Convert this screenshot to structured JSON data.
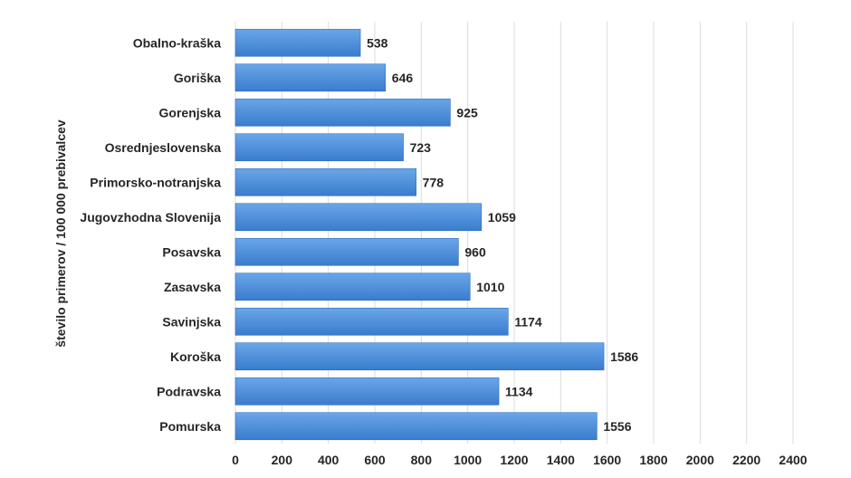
{
  "chart_data": {
    "type": "bar",
    "orientation": "horizontal",
    "title": "",
    "xlabel": "",
    "ylabel": "število primerov / 100 000 prebivalcev",
    "categories": [
      "Obalno-kraška",
      "Goriška",
      "Gorenjska",
      "Osrednjeslovenska",
      "Primorsko-notranjska",
      "Jugovzhodna Slovenija",
      "Posavska",
      "Zasavska",
      "Savinjska",
      "Koroška",
      "Podravska",
      "Pomurska"
    ],
    "values": [
      538,
      646,
      925,
      723,
      778,
      1059,
      960,
      1010,
      1174,
      1586,
      1134,
      1556
    ],
    "xlim": [
      0,
      2400
    ],
    "xticks": [
      0,
      200,
      400,
      600,
      800,
      1000,
      1200,
      1400,
      1600,
      1800,
      2000,
      2200,
      2400
    ],
    "grid": true,
    "legend": "none",
    "colors": {
      "bar_top": "#6aa6e8",
      "bar_bottom": "#3a7ccd",
      "bar_stroke": "#2f6fbf",
      "grid": "#dcdcdc",
      "text": "#262626"
    }
  }
}
